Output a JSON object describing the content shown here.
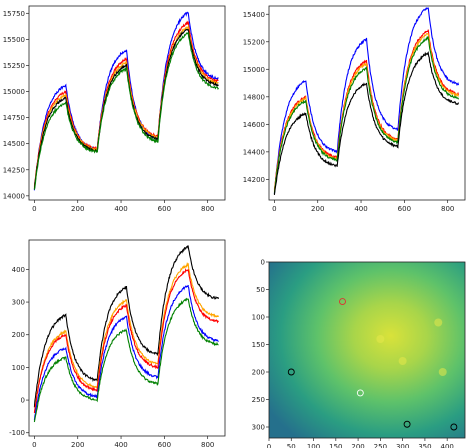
{
  "chart_data": [
    {
      "id": "top-left",
      "type": "line",
      "xlim": [
        -25,
        880
      ],
      "ylim": [
        13960,
        15820
      ],
      "xticks": [
        0,
        200,
        400,
        600,
        800
      ],
      "yticks": [
        14000,
        14250,
        14500,
        14750,
        15000,
        15250,
        15500,
        15750
      ],
      "anchors_x": [
        0,
        145,
        290,
        425,
        570,
        710,
        850
      ],
      "series": [
        {
          "color": "#0000ff",
          "values": [
            14060,
            15060,
            14440,
            15400,
            14550,
            15760,
            15120
          ]
        },
        {
          "color": "#ff0000",
          "values": [
            14080,
            15000,
            14450,
            15310,
            14570,
            15660,
            15100
          ]
        },
        {
          "color": "#ffa500",
          "values": [
            14070,
            14970,
            14440,
            15280,
            14560,
            15620,
            15080
          ]
        },
        {
          "color": "#000000",
          "values": [
            14070,
            14940,
            14430,
            15250,
            14540,
            15600,
            15060
          ]
        },
        {
          "color": "#008000",
          "values": [
            14050,
            14890,
            14420,
            15220,
            14520,
            15560,
            15030
          ]
        }
      ]
    },
    {
      "id": "top-right",
      "type": "line",
      "xlim": [
        -25,
        880
      ],
      "ylim": [
        14050,
        15460
      ],
      "xticks": [
        0,
        200,
        400,
        600,
        800
      ],
      "yticks": [
        14200,
        14400,
        14600,
        14800,
        15000,
        15200,
        15400
      ],
      "anchors_x": [
        0,
        145,
        290,
        425,
        570,
        710,
        850
      ],
      "series": [
        {
          "color": "#0000ff",
          "values": [
            14100,
            14920,
            14400,
            15220,
            14560,
            15450,
            14890
          ]
        },
        {
          "color": "#ff0000",
          "values": [
            14120,
            14800,
            14360,
            15060,
            14490,
            15280,
            14820
          ]
        },
        {
          "color": "#ffa500",
          "values": [
            14110,
            14790,
            14350,
            15040,
            14480,
            15260,
            14810
          ]
        },
        {
          "color": "#008000",
          "values": [
            14100,
            14770,
            14340,
            15010,
            14470,
            15230,
            14790
          ]
        },
        {
          "color": "#000000",
          "values": [
            14080,
            14680,
            14300,
            14900,
            14440,
            15120,
            14750
          ]
        }
      ]
    },
    {
      "id": "bottom-left",
      "type": "line",
      "xlim": [
        -25,
        880
      ],
      "ylim": [
        -110,
        490
      ],
      "xticks": [
        0,
        200,
        400,
        600,
        800
      ],
      "yticks": [
        -100,
        0,
        100,
        200,
        300,
        400
      ],
      "anchors_x": [
        0,
        145,
        290,
        425,
        570,
        710,
        850
      ],
      "series": [
        {
          "color": "#000000",
          "values": [
            -20,
            260,
            60,
            345,
            140,
            470,
            310
          ]
        },
        {
          "color": "#ffa500",
          "values": [
            -40,
            210,
            40,
            305,
            110,
            415,
            255
          ]
        },
        {
          "color": "#ff0000",
          "values": [
            -40,
            200,
            30,
            290,
            100,
            400,
            240
          ]
        },
        {
          "color": "#0000ff",
          "values": [
            -60,
            160,
            10,
            255,
            70,
            350,
            180
          ]
        },
        {
          "color": "#008000",
          "values": [
            -70,
            130,
            0,
            215,
            50,
            310,
            170
          ]
        }
      ]
    },
    {
      "id": "bottom-right",
      "type": "heatmap",
      "xlim": [
        0,
        440
      ],
      "ylim": [
        320,
        0
      ],
      "xticks": [
        0,
        50,
        100,
        150,
        200,
        250,
        300,
        350,
        400
      ],
      "yticks": [
        0,
        50,
        100,
        150,
        200,
        250,
        300
      ],
      "markers": [
        {
          "x": 165,
          "y": 72,
          "color": "#e03030"
        },
        {
          "x": 50,
          "y": 200,
          "color": "#000000"
        },
        {
          "x": 205,
          "y": 238,
          "color": "#ffffff"
        },
        {
          "x": 310,
          "y": 295,
          "color": "#000000"
        },
        {
          "x": 415,
          "y": 300,
          "color": "#000000"
        }
      ]
    }
  ]
}
